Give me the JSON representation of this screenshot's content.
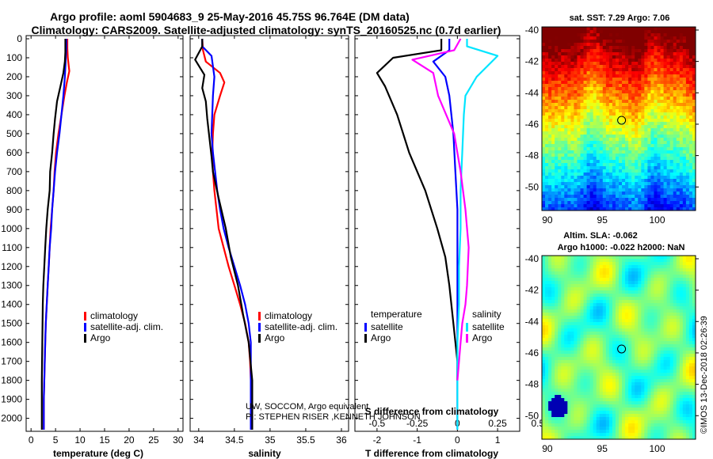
{
  "titles": {
    "line1": "Argo profile: aoml 5904683_9 25-May-2016 45.75S 96.764E (DM data)",
    "line2": "Climatology: CARS2009. Satellite-adjusted climatology: synTS_20160525.nc (0.7d earlier)"
  },
  "colors": {
    "climatology": "#ff0000",
    "satellite": "#0000ff",
    "argo": "#000000",
    "sat_salinity": "#00e5ff",
    "argo_salinity": "#ff00ff"
  },
  "footnote": {
    "line1": "UW, SOCCOM, Argo equivalent",
    "line2": "PI: STEPHEN RISER ,KENNETH JOHNSON"
  },
  "stamp": "©IMOS 13-Dec-2018 02:26:39",
  "chart_data": [
    {
      "type": "line",
      "id": "temperature",
      "xlabel": "temperature (deg C)",
      "ylabel": "",
      "xlim": [
        -1,
        31
      ],
      "ylim": [
        2080,
        0
      ],
      "xticks": [
        0,
        5,
        10,
        15,
        20,
        25,
        30
      ],
      "xtick_labels": [
        "0",
        "5",
        "10",
        "15",
        "20",
        "25",
        "30"
      ],
      "yticks": [
        0,
        100,
        200,
        300,
        400,
        500,
        600,
        700,
        800,
        900,
        1000,
        1100,
        1200,
        1300,
        1400,
        1500,
        1600,
        1700,
        1800,
        1900,
        2000
      ],
      "legend": [
        "climatology",
        "satellite-adj. clim.",
        "Argo"
      ],
      "series": [
        {
          "name": "climatology",
          "x": [
            7.4,
            7.4,
            7.5,
            7.8,
            7.3,
            6.8,
            6.2,
            5.6,
            5.1,
            4.8,
            4.6,
            4.3,
            4.0,
            3.8,
            3.6,
            3.4,
            3.2,
            3.0,
            2.9,
            2.8,
            2.7,
            2.6,
            2.6
          ],
          "y": [
            0,
            50,
            100,
            170,
            230,
            300,
            400,
            500,
            600,
            700,
            800,
            900,
            1000,
            1100,
            1200,
            1300,
            1400,
            1500,
            1600,
            1700,
            1800,
            1900,
            2060
          ]
        },
        {
          "name": "satellite-adj. clim.",
          "x": [
            7.2,
            7.2,
            7.1,
            6.9,
            6.6,
            6.2,
            5.8,
            5.3,
            4.9,
            4.6,
            4.3,
            4.1,
            3.8,
            3.6,
            3.4,
            3.2,
            3.0,
            2.9,
            2.8,
            2.7,
            2.6,
            2.6
          ],
          "y": [
            0,
            50,
            100,
            200,
            300,
            400,
            500,
            600,
            700,
            800,
            900,
            1000,
            1100,
            1200,
            1300,
            1400,
            1500,
            1600,
            1700,
            1800,
            1900,
            2060
          ]
        },
        {
          "name": "Argo",
          "x": [
            7.0,
            7.0,
            6.9,
            6.6,
            6.0,
            5.3,
            4.9,
            4.6,
            4.3,
            3.9,
            3.8,
            3.4,
            3.1,
            2.9,
            2.7,
            2.5,
            2.4,
            2.3,
            2.2,
            2.2
          ],
          "y": [
            0,
            70,
            120,
            180,
            250,
            330,
            420,
            500,
            600,
            700,
            800,
            900,
            1000,
            1100,
            1200,
            1300,
            1400,
            1600,
            1800,
            2060
          ]
        }
      ]
    },
    {
      "type": "line",
      "id": "salinity",
      "xlabel": "salinity",
      "xlim": [
        33.88,
        36.1
      ],
      "ylim": [
        2080,
        0
      ],
      "xticks": [
        34,
        34.5,
        35,
        35.5,
        36
      ],
      "xtick_labels": [
        "34",
        "34.5",
        "35",
        "35.5",
        "36"
      ],
      "legend": [
        "climatology",
        "satellite-adj. clim.",
        "Argo"
      ],
      "series": [
        {
          "name": "climatology",
          "x": [
            34.05,
            34.06,
            34.1,
            34.3,
            34.36,
            34.3,
            34.22,
            34.2,
            34.19,
            34.2,
            34.22,
            34.25,
            34.28,
            34.35,
            34.42,
            34.5,
            34.58,
            34.65,
            34.7,
            34.72,
            34.73,
            34.73
          ],
          "y": [
            0,
            60,
            120,
            180,
            230,
            300,
            400,
            500,
            600,
            700,
            800,
            900,
            1000,
            1100,
            1200,
            1300,
            1400,
            1500,
            1600,
            1700,
            1800,
            2060
          ]
        },
        {
          "name": "satellite-adj. clim.",
          "x": [
            34.05,
            34.05,
            34.18,
            34.22,
            34.2,
            34.19,
            34.18,
            34.2,
            34.23,
            34.26,
            34.3,
            34.35,
            34.42,
            34.5,
            34.58,
            34.65,
            34.7,
            34.73,
            34.73
          ],
          "y": [
            0,
            40,
            90,
            200,
            300,
            400,
            500,
            600,
            700,
            800,
            900,
            1000,
            1100,
            1200,
            1300,
            1400,
            1500,
            1600,
            2060
          ]
        },
        {
          "name": "Argo",
          "x": [
            34.05,
            34.05,
            33.95,
            34.08,
            34.05,
            34.1,
            34.12,
            34.15,
            34.18,
            34.2,
            34.28,
            34.38,
            34.45,
            34.55,
            34.62,
            34.7,
            34.75,
            34.75
          ],
          "y": [
            0,
            40,
            110,
            190,
            260,
            330,
            420,
            520,
            620,
            700,
            840,
            1000,
            1150,
            1300,
            1450,
            1600,
            1800,
            2060
          ]
        }
      ]
    },
    {
      "type": "line",
      "id": "difference",
      "xlabel": "T difference from climatology",
      "xlabel2": "S difference from climatology",
      "xlim": [
        -2.55,
        1.55
      ],
      "ylim": [
        2080,
        0
      ],
      "xticks": [
        -2,
        -1,
        0,
        1
      ],
      "xtick_labels": [
        "-2",
        "-1",
        "0",
        "1"
      ],
      "xticks2": [
        -0.5,
        -0.25,
        0,
        0.25,
        0.5
      ],
      "xtick2_labels": [
        "-0.5",
        "-0.25",
        "0",
        "0.25",
        "0.5"
      ],
      "legend_temperature_title": "temperature",
      "legend_salinity_title": "salinity",
      "legend": [
        "satellite",
        "Argo",
        "satellite",
        "Argo"
      ],
      "series": [
        {
          "name": "T satellite",
          "x": [
            -0.2,
            -0.2,
            -0.6,
            -0.3,
            -0.2,
            -0.1,
            -0.05,
            0,
            0,
            0,
            0,
            0,
            0,
            0
          ],
          "y": [
            0,
            60,
            120,
            200,
            300,
            500,
            700,
            900,
            1100,
            1300,
            1500,
            1700,
            1900,
            2060
          ]
        },
        {
          "name": "T Argo",
          "x": [
            -0.4,
            -0.4,
            -1.6,
            -2.0,
            -1.8,
            -1.5,
            -1.2,
            -0.8,
            -0.5,
            -0.3,
            -0.2,
            -0.1,
            0,
            0
          ],
          "y": [
            0,
            60,
            100,
            180,
            250,
            400,
            600,
            800,
            1000,
            1150,
            1300,
            1500,
            1700,
            1800
          ]
        },
        {
          "name": "S satellite",
          "x": [
            0.06,
            0.06,
            0.25,
            0.12,
            0.05,
            0.04,
            0.03,
            0.02,
            0.02,
            0.01,
            0.01,
            0,
            0,
            0,
            0
          ],
          "y": [
            0,
            40,
            90,
            200,
            300,
            400,
            600,
            800,
            1000,
            1200,
            1400,
            1600,
            1800,
            2000,
            2060
          ]
        },
        {
          "name": "S Argo",
          "x": [
            0.02,
            -0.02,
            -0.28,
            -0.15,
            -0.12,
            -0.02,
            0.02,
            0.05,
            0.07,
            0.06,
            0.05,
            0.03,
            0.02,
            0.01,
            0
          ],
          "y": [
            0,
            60,
            110,
            180,
            300,
            500,
            700,
            900,
            1100,
            1300,
            1400,
            1500,
            1600,
            1700,
            1800
          ]
        }
      ]
    },
    {
      "type": "heatmap",
      "id": "sst-map",
      "title": "sat. SST: 7.29 Argo: 7.06",
      "xlim": [
        89.5,
        103.5
      ],
      "ylim": [
        -51.5,
        -39.8
      ],
      "xticks": [
        90,
        95,
        100
      ],
      "xtick_labels": [
        "90",
        "95",
        "100"
      ],
      "yticks": [
        -40,
        -42,
        -44,
        -46,
        -48,
        -50
      ],
      "ytick_labels": [
        "-40",
        "-42",
        "-44",
        "-46",
        "-48",
        "-50"
      ],
      "marker": {
        "lon": 96.76,
        "lat": -45.75
      }
    },
    {
      "type": "heatmap",
      "id": "sla-map",
      "title": "Altim. SLA: -0.062",
      "subtitle": "Argo h1000: -0.022 h2000: NaN",
      "xlim": [
        89.5,
        103.5
      ],
      "ylim": [
        -51.5,
        -39.8
      ],
      "xticks": [
        90,
        95,
        100
      ],
      "xtick_labels": [
        "90",
        "95",
        "100"
      ],
      "yticks": [
        -40,
        -42,
        -44,
        -46,
        -48,
        -50
      ],
      "ytick_labels": [
        "-40",
        "-42",
        "-44",
        "-46",
        "-48",
        "-50"
      ],
      "marker": {
        "lon": 96.76,
        "lat": -45.75
      }
    }
  ]
}
